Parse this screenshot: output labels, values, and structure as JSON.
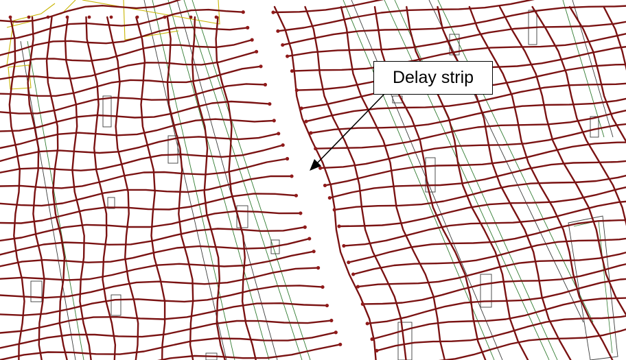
{
  "figure": {
    "callout": {
      "label": "Delay strip"
    },
    "colors": {
      "tendon": "#7a1212",
      "anchor": "#8f1a1a",
      "element_outline": "#2f7a2f",
      "element_outline_dark": "#3a3a3a",
      "highlight_outline": "#c8b400",
      "background": "#ffffff",
      "arrow": "#000000"
    }
  }
}
